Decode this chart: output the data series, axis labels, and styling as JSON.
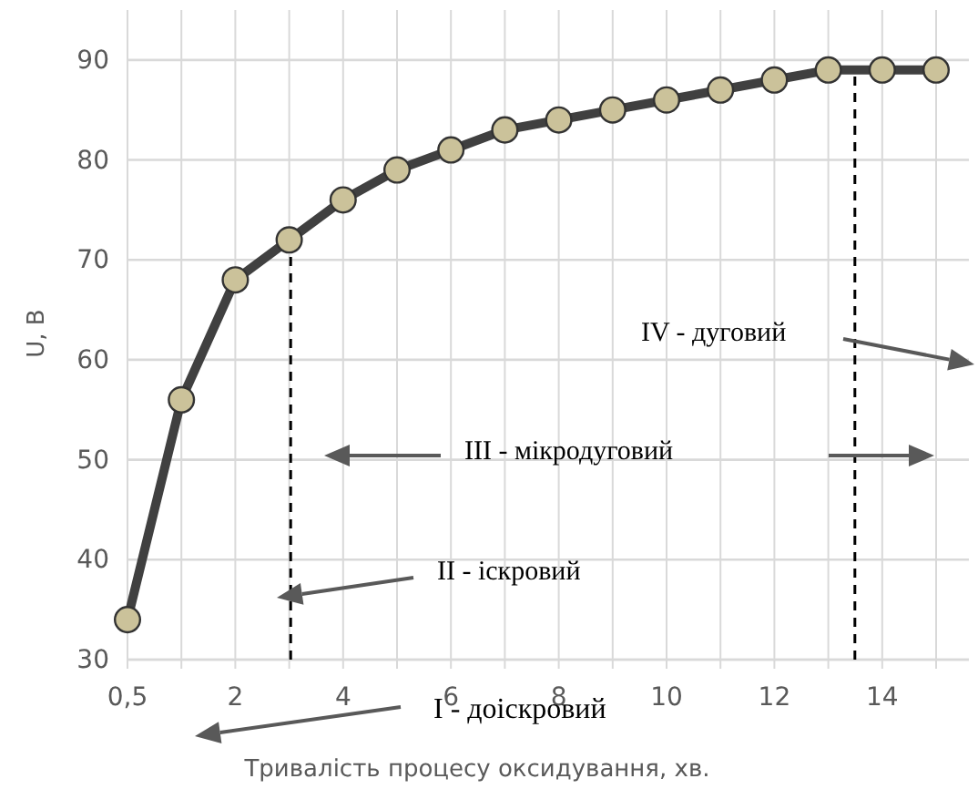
{
  "chart_data": {
    "type": "line",
    "categories": [
      "0,5",
      null,
      "2",
      null,
      "4",
      null,
      "6",
      null,
      "8",
      null,
      "10",
      null,
      "12",
      null,
      "14",
      null
    ],
    "series": [
      {
        "color": "#404040",
        "values": [
          34,
          56,
          68,
          72,
          76,
          79,
          81,
          83,
          84,
          85,
          86,
          87,
          88,
          89,
          89,
          89
        ]
      }
    ],
    "marker": "circle",
    "ylim": [
      30,
      95
    ],
    "yticks": [
      30,
      40,
      50,
      60,
      70,
      80,
      90
    ],
    "grid": true,
    "xlabel": "Тривалість процесу оксидування, хв.",
    "ylabel": "U, В",
    "annotations": [
      "I - доіскровий",
      "II - іскровий",
      "III - мікродуговий",
      "IV - дуговий"
    ]
  }
}
